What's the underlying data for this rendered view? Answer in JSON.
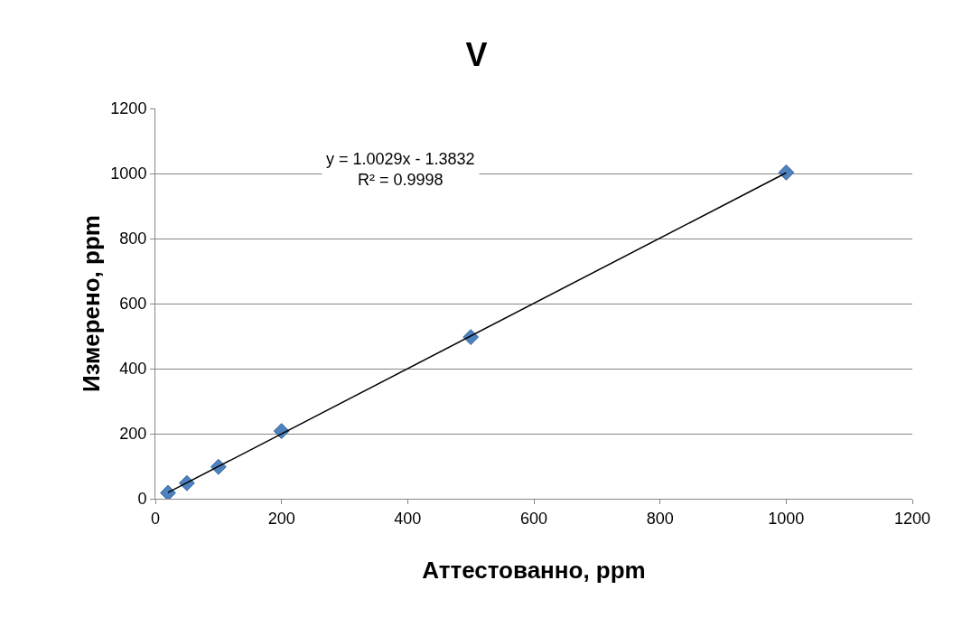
{
  "chart_data": {
    "type": "scatter",
    "title": "V",
    "xlabel": "Аттестованно, ppm",
    "ylabel": "Измерено, ppm",
    "x": [
      20,
      50,
      100,
      200,
      500,
      1000
    ],
    "series": [
      {
        "color": "#4f81bd",
        "values": [
          18,
          48,
          98,
          208,
          497,
          1003
        ]
      },
      {
        "type": "line",
        "marker": "none",
        "color": "#000000",
        "x": [
          20,
          1000
        ],
        "values": [
          19,
          1002
        ]
      }
    ],
    "xlim": [
      0,
      1200
    ],
    "xticks": [
      0,
      200,
      400,
      600,
      800,
      1000,
      1200
    ],
    "ylim": [
      0,
      1200
    ],
    "yticks": [
      0,
      200,
      400,
      600,
      800,
      1000,
      1200
    ],
    "grid": "y",
    "marker": "diamond",
    "annotations": [
      "y = 1.0029x - 1.3832\nR² = 0.9998"
    ]
  }
}
